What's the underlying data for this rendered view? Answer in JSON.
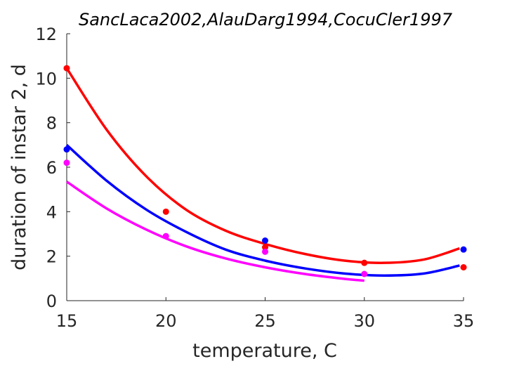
{
  "chart_data": {
    "type": "scatter",
    "title": "SancLaca2002,AlauDarg1994,CocuCler1997",
    "xlabel": "temperature, C",
    "ylabel": "duration of instar 2, d",
    "xlim": [
      15,
      35
    ],
    "ylim": [
      0,
      12
    ],
    "xticks": [
      "15",
      "20",
      "25",
      "30",
      "35"
    ],
    "yticks": [
      "0",
      "2",
      "4",
      "6",
      "8",
      "10",
      "12"
    ],
    "grid": false,
    "legend": "none",
    "series": [
      {
        "color": "#ff0000",
        "points": [
          [
            15,
            10.45
          ],
          [
            20,
            4.0
          ],
          [
            25,
            2.4
          ],
          [
            30,
            1.7
          ],
          [
            35,
            1.5
          ]
        ],
        "curve": [
          [
            15,
            10.45
          ],
          [
            17,
            7.7
          ],
          [
            19,
            5.6
          ],
          [
            21,
            4.1
          ],
          [
            23,
            3.15
          ],
          [
            25,
            2.55
          ],
          [
            27,
            2.1
          ],
          [
            29,
            1.8
          ],
          [
            31,
            1.7
          ],
          [
            33,
            1.85
          ],
          [
            34.8,
            2.35
          ]
        ]
      },
      {
        "color": "#0000ff",
        "points": [
          [
            15,
            6.8
          ],
          [
            25,
            2.7
          ],
          [
            35,
            2.3
          ]
        ],
        "curve": [
          [
            15,
            7.0
          ],
          [
            17,
            5.4
          ],
          [
            19,
            4.1
          ],
          [
            21,
            3.1
          ],
          [
            23,
            2.3
          ],
          [
            25,
            1.8
          ],
          [
            27,
            1.45
          ],
          [
            29,
            1.22
          ],
          [
            31,
            1.13
          ],
          [
            33,
            1.22
          ],
          [
            34.8,
            1.58
          ]
        ]
      },
      {
        "color": "#ff00ff",
        "points": [
          [
            15,
            6.2
          ],
          [
            20,
            2.9
          ],
          [
            25,
            2.2
          ],
          [
            30,
            1.2
          ]
        ],
        "curve": [
          [
            15,
            5.35
          ],
          [
            17,
            4.15
          ],
          [
            19,
            3.2
          ],
          [
            21,
            2.45
          ],
          [
            23,
            1.9
          ],
          [
            25,
            1.5
          ],
          [
            27,
            1.2
          ],
          [
            29,
            0.98
          ],
          [
            30,
            0.9
          ]
        ]
      }
    ]
  }
}
